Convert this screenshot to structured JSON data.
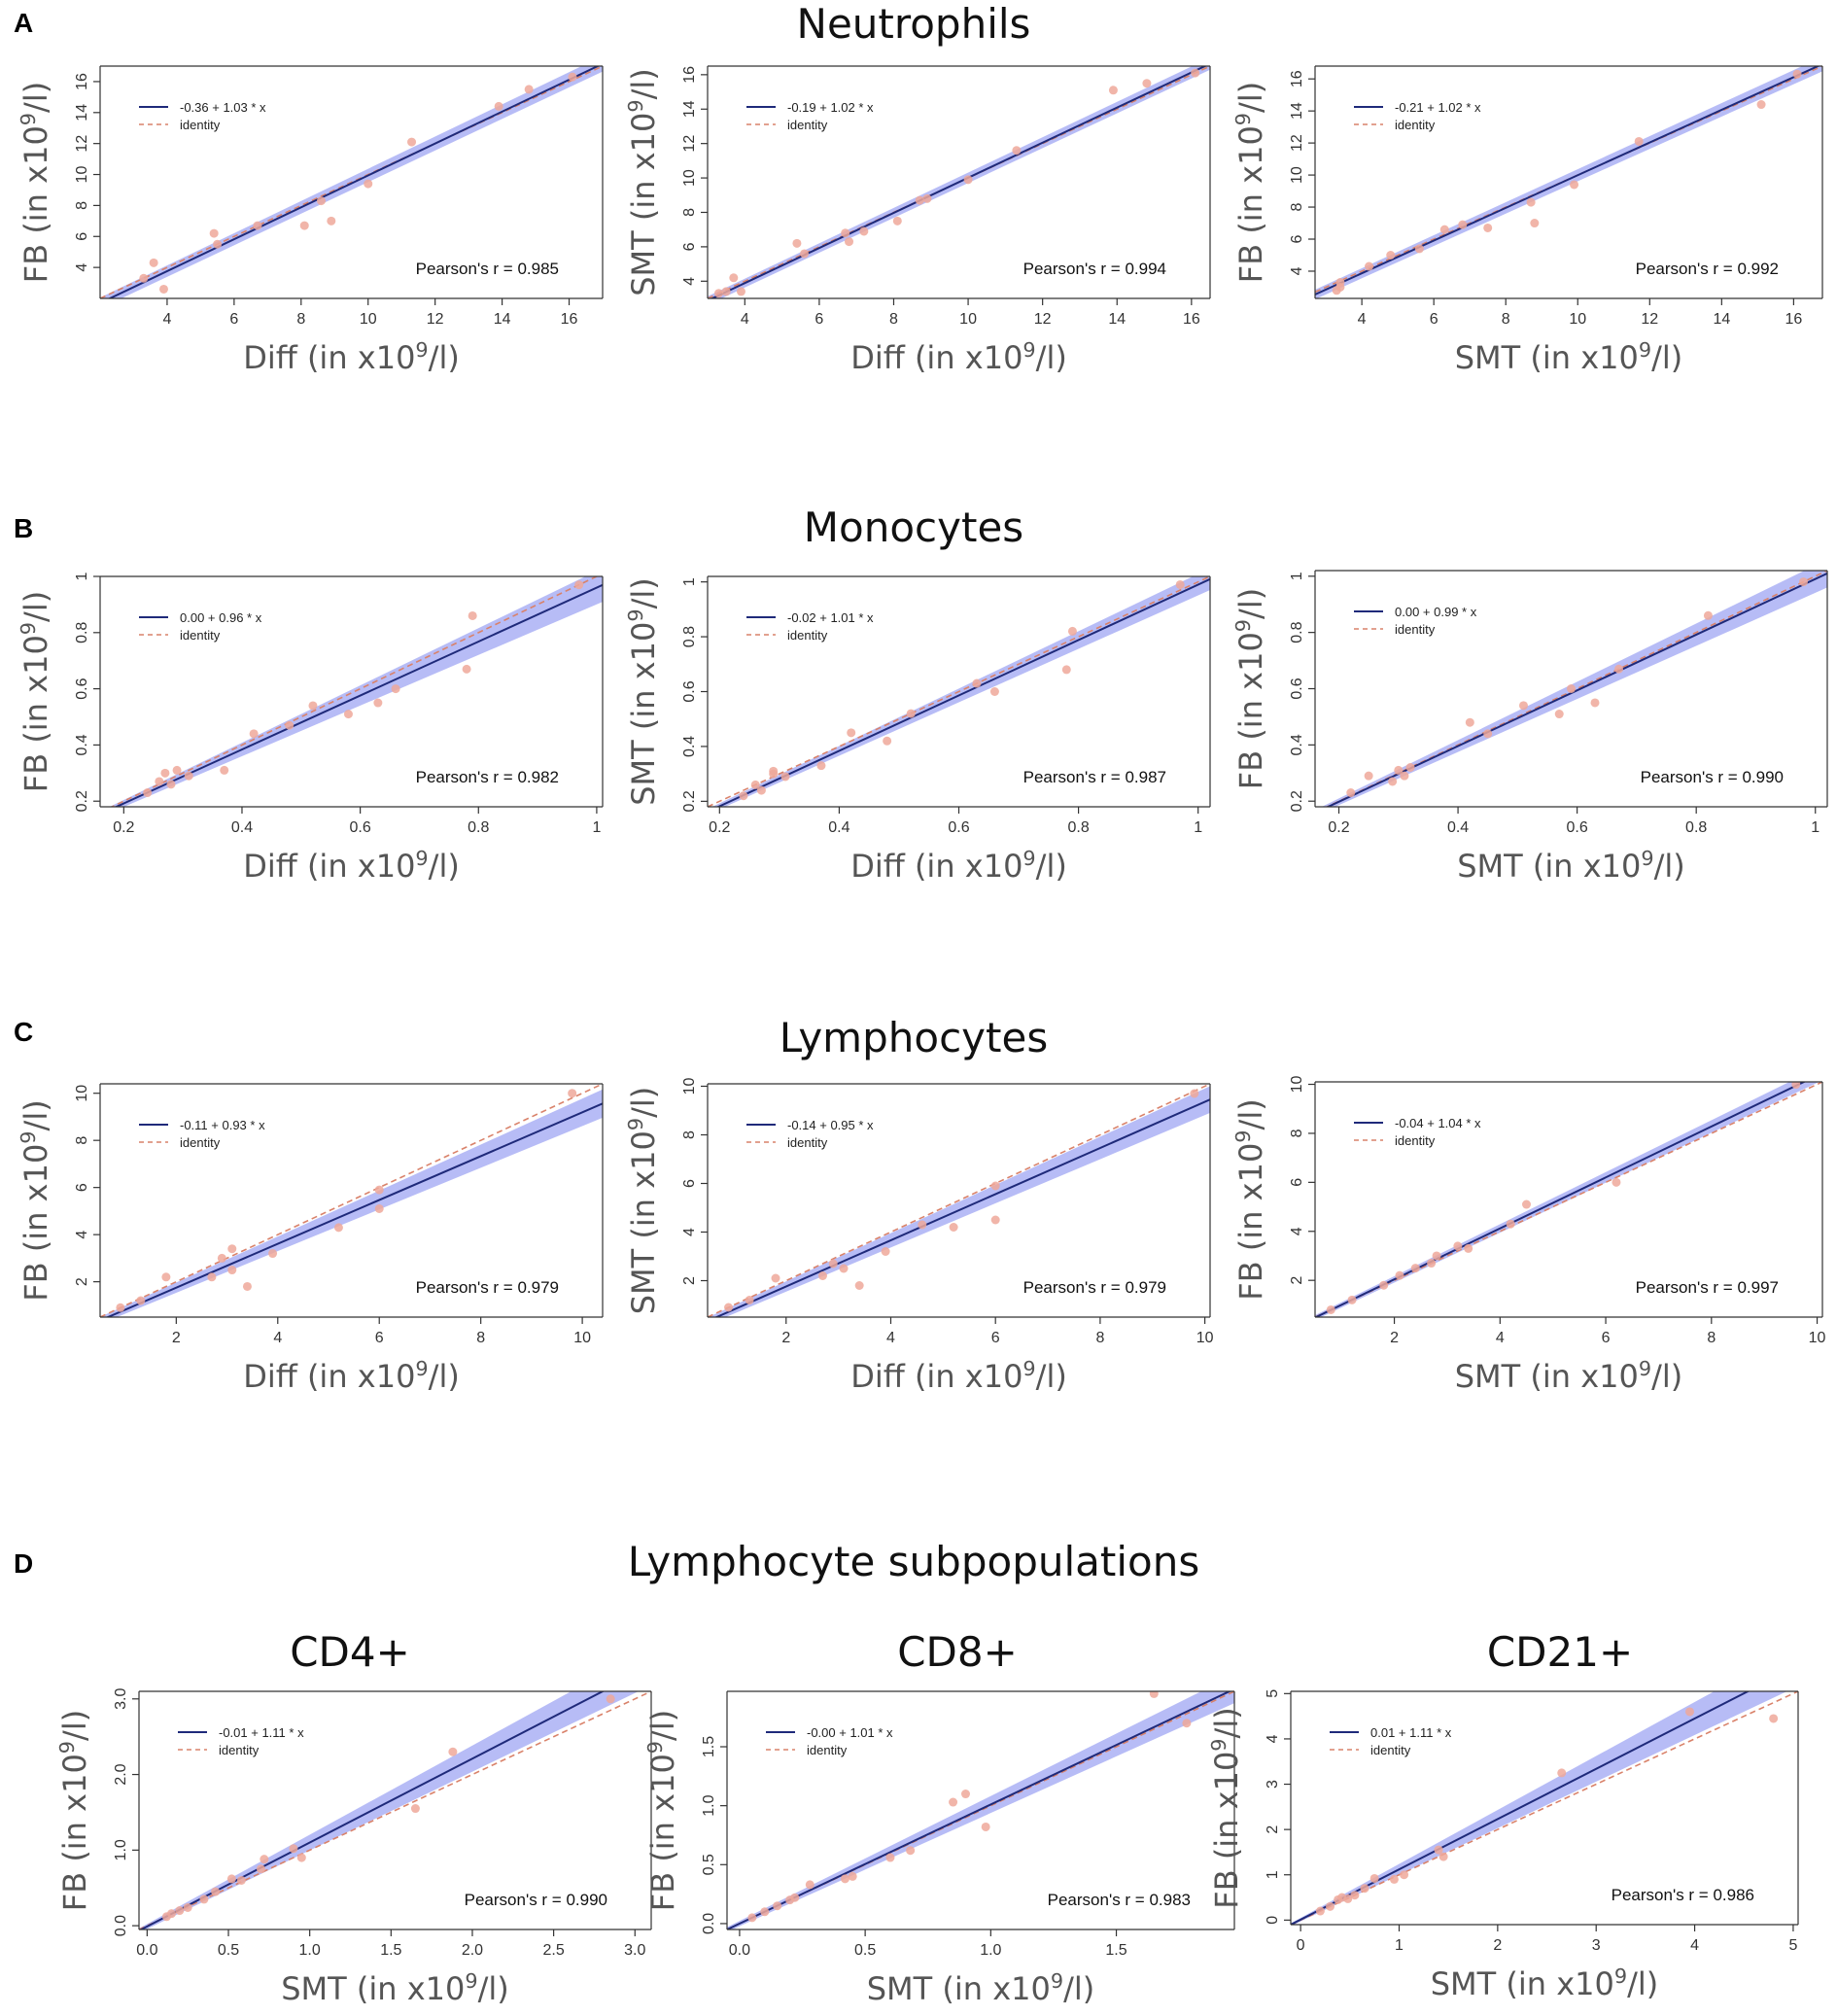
{
  "figure": {
    "panels": [
      {
        "letter": "A",
        "title": "Neutrophils"
      },
      {
        "letter": "B",
        "title": "Monocytes"
      },
      {
        "letter": "C",
        "title": "Lymphocytes"
      },
      {
        "letter": "D",
        "title": "Lymphocyte subpopulations"
      }
    ],
    "subtitles": [
      "CD4+",
      "CD8+",
      "CD21+"
    ]
  },
  "colors": {
    "fit_line": "#1f2a7a",
    "identity_line": "#d9826a",
    "ci_band": "#aab0f5",
    "points": "#eea89a",
    "axis": "#333333"
  },
  "chart_data": [
    {
      "id": "A1",
      "type": "scatter",
      "xlabel": "Diff (in x10^9/l)",
      "ylabel": "FB (in x10^9/l)",
      "xlim": [
        2,
        17
      ],
      "ylim": [
        2,
        17
      ],
      "xticks": [
        4,
        6,
        8,
        10,
        12,
        14,
        16
      ],
      "yticks": [
        4,
        6,
        8,
        10,
        12,
        14,
        16
      ],
      "fit": {
        "intercept": -0.36,
        "slope": 1.03
      },
      "ci_halfwidth": [
        0.35,
        0.5
      ],
      "legend": [
        "-0.36 + 1.03 * x",
        "identity"
      ],
      "r_text": "Pearson's r = 0.985",
      "points": [
        [
          3.3,
          3.3
        ],
        [
          3.6,
          4.3
        ],
        [
          3.9,
          2.6
        ],
        [
          5.4,
          6.2
        ],
        [
          5.5,
          5.5
        ],
        [
          6.7,
          6.7
        ],
        [
          8.1,
          6.7
        ],
        [
          8.6,
          8.3
        ],
        [
          8.9,
          7.0
        ],
        [
          10.0,
          9.4
        ],
        [
          11.3,
          12.1
        ],
        [
          13.9,
          14.4
        ],
        [
          14.8,
          15.5
        ],
        [
          16.1,
          16.3
        ]
      ]
    },
    {
      "id": "A2",
      "type": "scatter",
      "xlabel": "Diff (in x10^9/l)",
      "ylabel": "SMT (in x10^9/l)",
      "xlim": [
        3,
        16.5
      ],
      "ylim": [
        3,
        16.5
      ],
      "xticks": [
        4,
        6,
        8,
        10,
        12,
        14,
        16
      ],
      "yticks": [
        4,
        6,
        8,
        10,
        12,
        14,
        16
      ],
      "fit": {
        "intercept": -0.19,
        "slope": 1.02
      },
      "ci_halfwidth": [
        0.25,
        0.35
      ],
      "legend": [
        "-0.19 + 1.02 * x",
        "identity"
      ],
      "r_text": "Pearson's r = 0.994",
      "points": [
        [
          3.3,
          3.3
        ],
        [
          3.5,
          3.4
        ],
        [
          3.7,
          4.2
        ],
        [
          3.9,
          3.4
        ],
        [
          5.4,
          6.2
        ],
        [
          5.6,
          5.6
        ],
        [
          6.7,
          6.8
        ],
        [
          6.8,
          6.3
        ],
        [
          7.2,
          6.9
        ],
        [
          8.1,
          7.5
        ],
        [
          8.7,
          8.7
        ],
        [
          8.9,
          8.8
        ],
        [
          10.0,
          9.9
        ],
        [
          11.3,
          11.6
        ],
        [
          13.9,
          15.1
        ],
        [
          14.8,
          15.5
        ],
        [
          16.1,
          16.1
        ]
      ]
    },
    {
      "id": "A3",
      "type": "scatter",
      "xlabel": "SMT (in x10^9/l)",
      "ylabel": "FB (in x10^9/l)",
      "xlim": [
        2.7,
        16.8
      ],
      "ylim": [
        2.3,
        16.8
      ],
      "xticks": [
        4,
        6,
        8,
        10,
        12,
        14,
        16
      ],
      "yticks": [
        4,
        6,
        8,
        10,
        12,
        14,
        16
      ],
      "fit": {
        "intercept": -0.21,
        "slope": 1.02
      },
      "ci_halfwidth": [
        0.3,
        0.45
      ],
      "legend": [
        "-0.21 + 1.02 * x",
        "identity"
      ],
      "r_text": "Pearson's r = 0.992",
      "points": [
        [
          3.3,
          2.8
        ],
        [
          3.4,
          3.3
        ],
        [
          3.4,
          3.0
        ],
        [
          4.2,
          4.3
        ],
        [
          4.8,
          5.0
        ],
        [
          5.6,
          5.4
        ],
        [
          6.3,
          6.6
        ],
        [
          6.8,
          6.9
        ],
        [
          7.5,
          6.7
        ],
        [
          8.7,
          8.3
        ],
        [
          8.8,
          7.0
        ],
        [
          9.9,
          9.4
        ],
        [
          11.7,
          12.1
        ],
        [
          15.1,
          14.4
        ],
        [
          16.1,
          16.3
        ]
      ]
    },
    {
      "id": "B1",
      "type": "scatter",
      "xlabel": "Diff (in x10^9/l)",
      "ylabel": "FB (in x10^9/l)",
      "xlim": [
        0.16,
        1.01
      ],
      "ylim": [
        0.18,
        1.0
      ],
      "xticks": [
        0.2,
        0.4,
        0.6,
        0.8,
        1.0
      ],
      "yticks": [
        0.2,
        0.4,
        0.6,
        0.8,
        1.0
      ],
      "fit": {
        "intercept": 0.0,
        "slope": 0.96
      },
      "ci_halfwidth": [
        0.01,
        0.06
      ],
      "legend": [
        "0.00 + 0.96 * x",
        "identity"
      ],
      "r_text": "Pearson's r = 0.982",
      "points": [
        [
          0.24,
          0.23
        ],
        [
          0.26,
          0.27
        ],
        [
          0.27,
          0.3
        ],
        [
          0.28,
          0.26
        ],
        [
          0.29,
          0.31
        ],
        [
          0.31,
          0.29
        ],
        [
          0.37,
          0.31
        ],
        [
          0.42,
          0.44
        ],
        [
          0.48,
          0.47
        ],
        [
          0.52,
          0.54
        ],
        [
          0.58,
          0.51
        ],
        [
          0.63,
          0.55
        ],
        [
          0.66,
          0.6
        ],
        [
          0.78,
          0.67
        ],
        [
          0.79,
          0.86
        ],
        [
          0.97,
          0.97
        ]
      ]
    },
    {
      "id": "B2",
      "type": "scatter",
      "xlabel": "Diff (in x10^9/l)",
      "ylabel": "SMT (in x10^9/l)",
      "xlim": [
        0.18,
        1.02
      ],
      "ylim": [
        0.18,
        1.02
      ],
      "xticks": [
        0.2,
        0.4,
        0.6,
        0.8,
        1.0
      ],
      "yticks": [
        0.2,
        0.4,
        0.6,
        0.8,
        1.0
      ],
      "fit": {
        "intercept": -0.02,
        "slope": 1.01
      },
      "ci_halfwidth": [
        0.01,
        0.04
      ],
      "legend": [
        "-0.02 + 1.01 * x",
        "identity"
      ],
      "r_text": "Pearson's r = 0.987",
      "points": [
        [
          0.24,
          0.22
        ],
        [
          0.26,
          0.26
        ],
        [
          0.27,
          0.24
        ],
        [
          0.29,
          0.31
        ],
        [
          0.29,
          0.3
        ],
        [
          0.31,
          0.29
        ],
        [
          0.37,
          0.33
        ],
        [
          0.42,
          0.45
        ],
        [
          0.48,
          0.42
        ],
        [
          0.52,
          0.52
        ],
        [
          0.63,
          0.63
        ],
        [
          0.66,
          0.6
        ],
        [
          0.78,
          0.68
        ],
        [
          0.79,
          0.82
        ],
        [
          0.97,
          0.99
        ]
      ]
    },
    {
      "id": "B3",
      "type": "scatter",
      "xlabel": "SMT (in x10^9/l)",
      "ylabel": "FB (in x10^9/l)",
      "xlim": [
        0.16,
        1.02
      ],
      "ylim": [
        0.18,
        1.02
      ],
      "xticks": [
        0.2,
        0.4,
        0.6,
        0.8,
        1.0
      ],
      "yticks": [
        0.2,
        0.4,
        0.6,
        0.8,
        1.0
      ],
      "fit": {
        "intercept": 0.0,
        "slope": 0.99
      },
      "ci_halfwidth": [
        0.01,
        0.05
      ],
      "legend": [
        "0.00 + 0.99 * x",
        "identity"
      ],
      "r_text": "Pearson's r = 0.990",
      "points": [
        [
          0.22,
          0.23
        ],
        [
          0.25,
          0.29
        ],
        [
          0.29,
          0.27
        ],
        [
          0.3,
          0.31
        ],
        [
          0.31,
          0.29
        ],
        [
          0.32,
          0.32
        ],
        [
          0.42,
          0.48
        ],
        [
          0.45,
          0.44
        ],
        [
          0.51,
          0.54
        ],
        [
          0.57,
          0.51
        ],
        [
          0.59,
          0.6
        ],
        [
          0.63,
          0.55
        ],
        [
          0.67,
          0.67
        ],
        [
          0.82,
          0.86
        ],
        [
          0.98,
          0.98
        ]
      ]
    },
    {
      "id": "C1",
      "type": "scatter",
      "xlabel": "Diff (in x10^9/l)",
      "ylabel": "FB (in x10^9/l)",
      "xlim": [
        0.5,
        10.4
      ],
      "ylim": [
        0.5,
        10.4
      ],
      "xticks": [
        2,
        4,
        6,
        8,
        10
      ],
      "yticks": [
        2,
        4,
        6,
        8,
        10
      ],
      "fit": {
        "intercept": -0.11,
        "slope": 0.93
      },
      "ci_halfwidth": [
        0.15,
        0.6
      ],
      "legend": [
        "-0.11 + 0.93 * x",
        "identity"
      ],
      "r_text": "Pearson's r = 0.979",
      "points": [
        [
          0.9,
          0.9
        ],
        [
          1.3,
          1.2
        ],
        [
          1.8,
          2.2
        ],
        [
          2.7,
          2.2
        ],
        [
          2.9,
          3.0
        ],
        [
          3.1,
          3.4
        ],
        [
          3.1,
          2.5
        ],
        [
          3.4,
          1.8
        ],
        [
          3.9,
          3.2
        ],
        [
          5.2,
          4.3
        ],
        [
          6.0,
          5.9
        ],
        [
          6.0,
          5.1
        ],
        [
          9.8,
          10.0
        ]
      ]
    },
    {
      "id": "C2",
      "type": "scatter",
      "xlabel": "Diff (in x10^9/l)",
      "ylabel": "SMT (in x10^9/l)",
      "xlim": [
        0.5,
        10.1
      ],
      "ylim": [
        0.5,
        10.1
      ],
      "xticks": [
        2,
        4,
        6,
        8,
        10
      ],
      "yticks": [
        2,
        4,
        6,
        8,
        10
      ],
      "fit": {
        "intercept": -0.14,
        "slope": 0.95
      },
      "ci_halfwidth": [
        0.15,
        0.55
      ],
      "legend": [
        "-0.14 + 0.95 * x",
        "identity"
      ],
      "r_text": "Pearson's r = 0.979",
      "points": [
        [
          0.9,
          0.9
        ],
        [
          1.3,
          1.2
        ],
        [
          1.8,
          2.1
        ],
        [
          2.7,
          2.2
        ],
        [
          2.9,
          2.7
        ],
        [
          3.1,
          2.5
        ],
        [
          3.4,
          1.8
        ],
        [
          3.9,
          3.2
        ],
        [
          4.6,
          4.3
        ],
        [
          5.2,
          4.2
        ],
        [
          6.0,
          4.5
        ],
        [
          6.0,
          5.9
        ],
        [
          9.8,
          9.7
        ]
      ]
    },
    {
      "id": "C3",
      "type": "scatter",
      "xlabel": "SMT (in x10^9/l)",
      "ylabel": "FB (in x10^9/l)",
      "xlim": [
        0.5,
        10.1
      ],
      "ylim": [
        0.5,
        10.1
      ],
      "xticks": [
        2,
        4,
        6,
        8,
        10
      ],
      "yticks": [
        2,
        4,
        6,
        8,
        10
      ],
      "fit": {
        "intercept": -0.04,
        "slope": 1.04
      },
      "ci_halfwidth": [
        0.1,
        0.3
      ],
      "legend": [
        "-0.04 + 1.04 * x",
        "identity"
      ],
      "r_text": "Pearson's r = 0.997",
      "points": [
        [
          0.8,
          0.8
        ],
        [
          1.2,
          1.2
        ],
        [
          1.8,
          1.8
        ],
        [
          2.1,
          2.2
        ],
        [
          2.4,
          2.5
        ],
        [
          2.7,
          2.7
        ],
        [
          2.8,
          3.0
        ],
        [
          3.2,
          3.4
        ],
        [
          3.4,
          3.3
        ],
        [
          4.2,
          4.3
        ],
        [
          4.5,
          5.1
        ],
        [
          6.2,
          6.0
        ],
        [
          9.6,
          10.0
        ]
      ]
    },
    {
      "id": "D1",
      "type": "scatter",
      "xlabel": "SMT (in x10^9/l)",
      "ylabel": "FB (in x10^9/l)",
      "xlim": [
        -0.05,
        3.1
      ],
      "ylim": [
        -0.05,
        3.1
      ],
      "xticks": [
        0.0,
        0.5,
        1.0,
        1.5,
        2.0,
        2.5,
        3.0
      ],
      "yticks": [
        0.0,
        1.0,
        2.0,
        3.0
      ],
      "tick_format": "fixed1",
      "fit": {
        "intercept": -0.01,
        "slope": 1.11
      },
      "ci_halfwidth": [
        0.03,
        0.25
      ],
      "legend": [
        "-0.01 + 1.11 * x",
        "identity"
      ],
      "r_text": "Pearson's r = 0.990",
      "points": [
        [
          0.12,
          0.12
        ],
        [
          0.15,
          0.16
        ],
        [
          0.2,
          0.2
        ],
        [
          0.25,
          0.24
        ],
        [
          0.35,
          0.35
        ],
        [
          0.42,
          0.45
        ],
        [
          0.52,
          0.62
        ],
        [
          0.58,
          0.6
        ],
        [
          0.7,
          0.75
        ],
        [
          0.72,
          0.88
        ],
        [
          0.9,
          1.02
        ],
        [
          0.95,
          0.9
        ],
        [
          1.65,
          1.55
        ],
        [
          1.88,
          2.3
        ],
        [
          2.85,
          3.0
        ]
      ]
    },
    {
      "id": "D2",
      "type": "scatter",
      "xlabel": "SMT (in x10^9/l)",
      "ylabel": "FB (in x10^9/l)",
      "xlim": [
        -0.05,
        1.97
      ],
      "ylim": [
        -0.05,
        1.97
      ],
      "xticks": [
        0.0,
        0.5,
        1.0,
        1.5
      ],
      "yticks": [
        0.0,
        0.5,
        1.0,
        1.5
      ],
      "tick_format": "fixed1",
      "fit": {
        "intercept": 0.0,
        "slope": 1.01
      },
      "ci_halfwidth": [
        0.02,
        0.12
      ],
      "legend": [
        "-0.00 + 1.01 * x",
        "identity"
      ],
      "r_text": "Pearson's r = 0.983",
      "points": [
        [
          0.05,
          0.05
        ],
        [
          0.1,
          0.1
        ],
        [
          0.15,
          0.15
        ],
        [
          0.2,
          0.2
        ],
        [
          0.22,
          0.22
        ],
        [
          0.28,
          0.33
        ],
        [
          0.42,
          0.38
        ],
        [
          0.45,
          0.4
        ],
        [
          0.6,
          0.56
        ],
        [
          0.68,
          0.62
        ],
        [
          0.85,
          1.03
        ],
        [
          0.9,
          1.1
        ],
        [
          0.98,
          0.82
        ],
        [
          1.65,
          1.95
        ],
        [
          1.78,
          1.7
        ]
      ]
    },
    {
      "id": "D3",
      "type": "scatter",
      "xlabel": "SMT (in x10^9/l)",
      "ylabel": "FB (in x10^9/l)",
      "xlim": [
        -0.1,
        5.05
      ],
      "ylim": [
        -0.1,
        5.05
      ],
      "xticks": [
        0,
        1,
        2,
        3,
        4,
        5
      ],
      "yticks": [
        0,
        1,
        2,
        3,
        4,
        5
      ],
      "fit": {
        "intercept": 0.01,
        "slope": 1.11
      },
      "ci_halfwidth": [
        0.03,
        0.45
      ],
      "legend": [
        "0.01 + 1.11 * x",
        "identity"
      ],
      "r_text": "Pearson's r = 0.986",
      "points": [
        [
          0.2,
          0.2
        ],
        [
          0.3,
          0.3
        ],
        [
          0.38,
          0.45
        ],
        [
          0.42,
          0.5
        ],
        [
          0.48,
          0.47
        ],
        [
          0.55,
          0.55
        ],
        [
          0.65,
          0.7
        ],
        [
          0.75,
          0.92
        ],
        [
          0.95,
          0.9
        ],
        [
          1.05,
          1.0
        ],
        [
          1.4,
          1.55
        ],
        [
          1.45,
          1.4
        ],
        [
          2.65,
          3.25
        ],
        [
          3.95,
          4.6
        ],
        [
          4.8,
          4.45
        ]
      ]
    }
  ]
}
